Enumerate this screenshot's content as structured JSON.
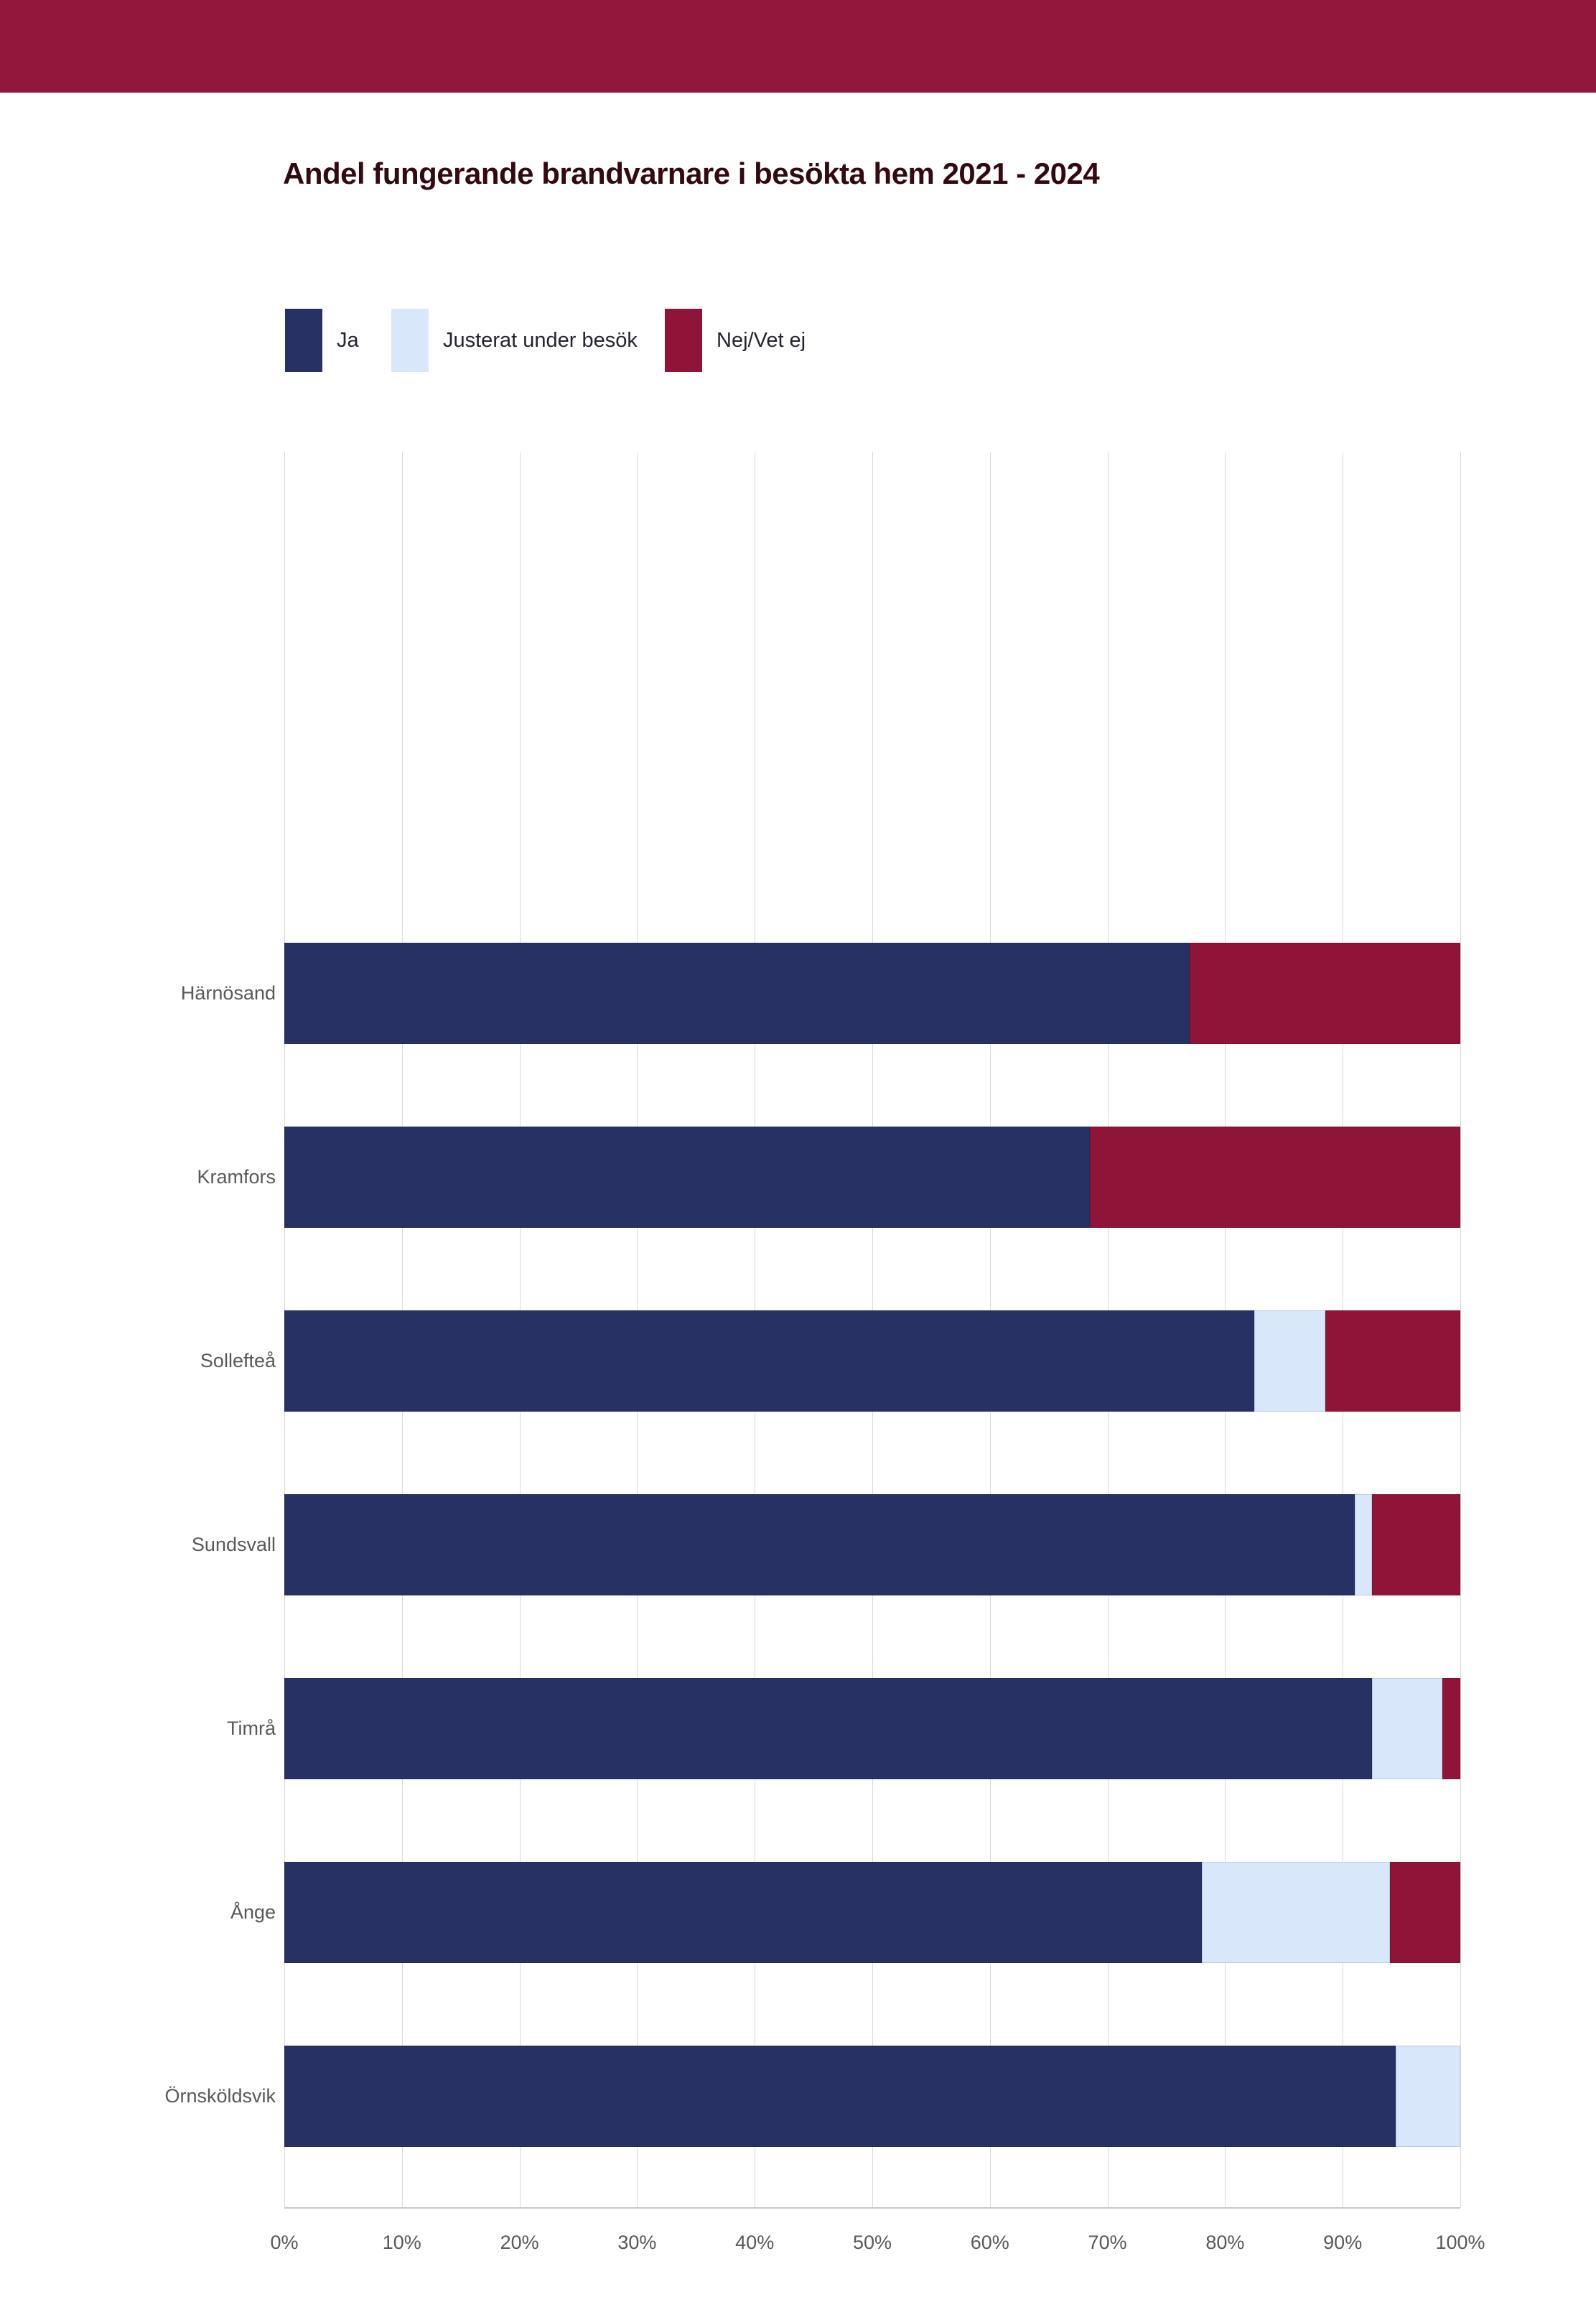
{
  "header": {
    "color": "#91173d"
  },
  "colors": {
    "background": "#ffffff",
    "title_text": "#330a12",
    "axis_text": "#595959",
    "gridline": "#d9d9d9",
    "axis_line": "#c9c9c9",
    "legend_text": "#24242e"
  },
  "chart_data": {
    "type": "bar",
    "orientation": "horizontal",
    "stacked": true,
    "title": "Andel fungerande brandvarnare i besökta hem 2021 - 2024",
    "categories": [
      "Härnösand",
      "Kramfors",
      "Sollefteå",
      "Sundsvall",
      "Timrå",
      "Ånge",
      "Örnsköldsvik"
    ],
    "series": [
      {
        "name": "Ja",
        "color": "#283163",
        "values": [
          77,
          68.5,
          82.5,
          91,
          92.5,
          78,
          94.5
        ]
      },
      {
        "name": "Justerat under besök",
        "color": "#d9e7fa",
        "values": [
          0,
          0,
          6,
          1.5,
          6,
          16,
          5.5
        ]
      },
      {
        "name": "Nej/Vet ej",
        "color": "#8e1538",
        "values": [
          23,
          31.5,
          11.5,
          7.5,
          1.5,
          6,
          0
        ]
      }
    ],
    "xlabel": "",
    "ylabel": "",
    "xlim": [
      0,
      100
    ],
    "x_ticks": [
      "0%",
      "10%",
      "20%",
      "30%",
      "40%",
      "50%",
      "60%",
      "70%",
      "80%",
      "90%",
      "100%"
    ],
    "grid": "vertical",
    "legend_position": "top-left"
  }
}
